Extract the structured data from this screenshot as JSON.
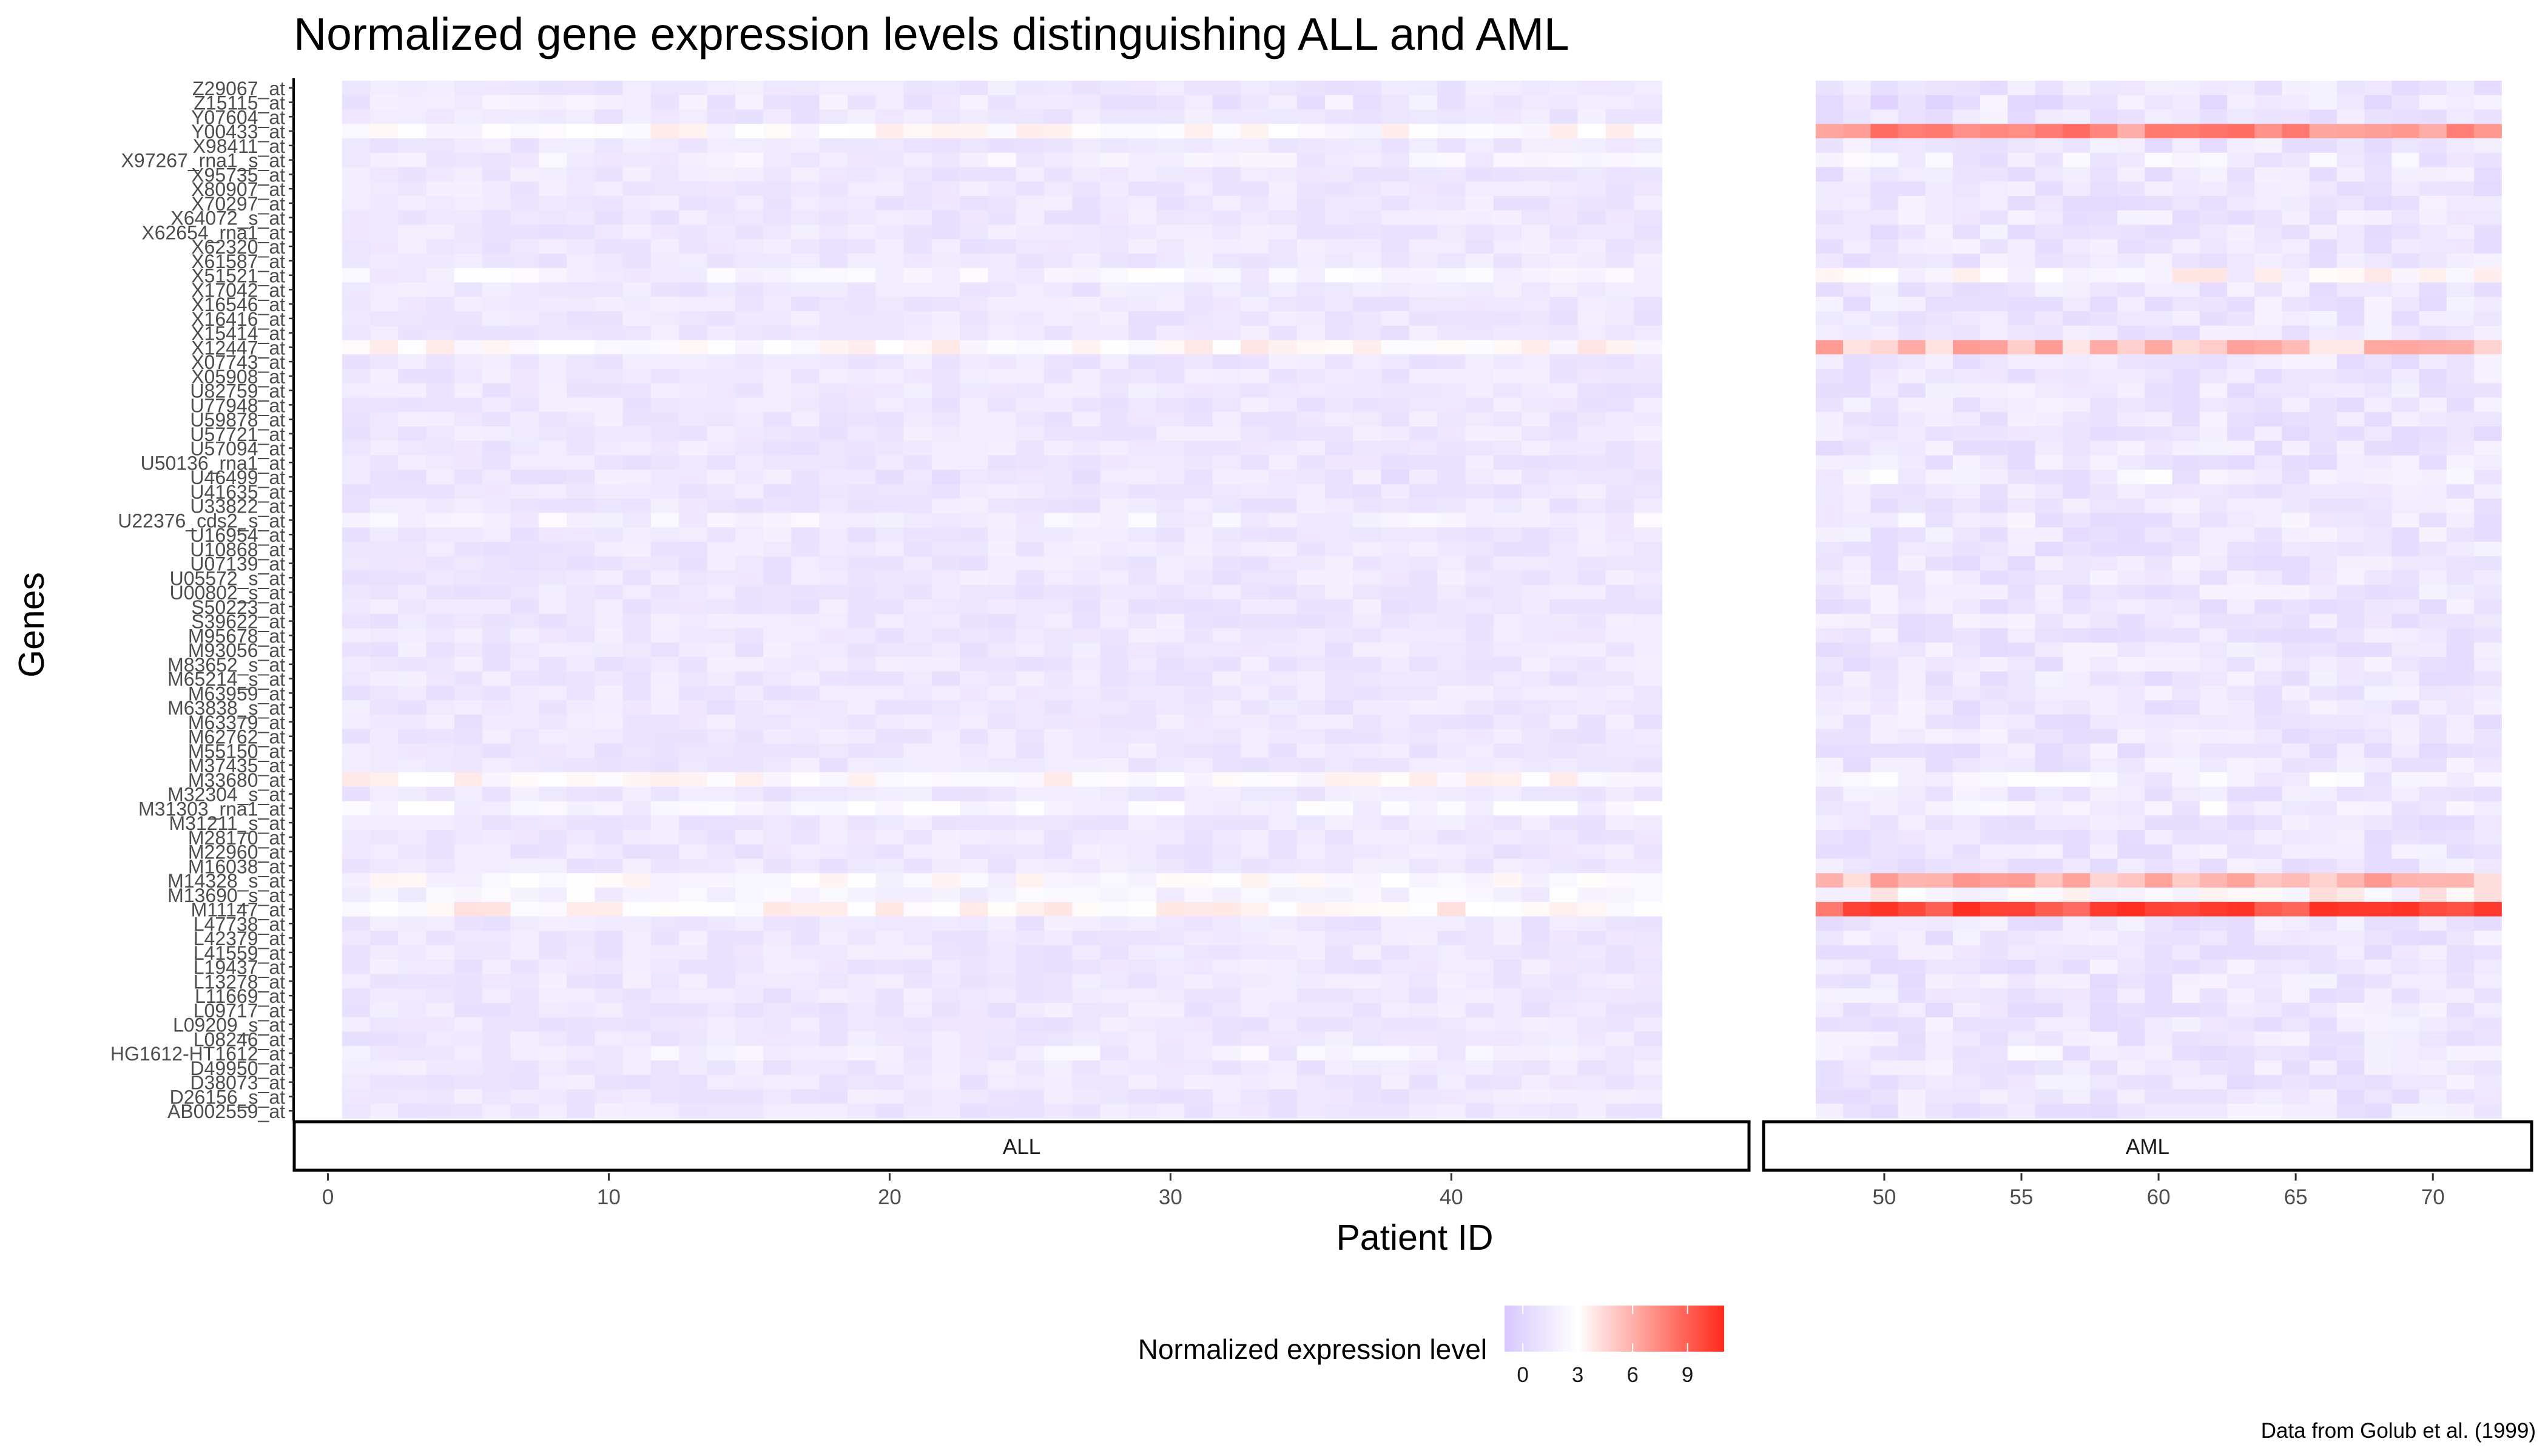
{
  "chart_data": {
    "type": "heatmap",
    "title": "Normalized gene expression levels distinguishing ALL and AML",
    "xlabel": "Patient ID",
    "ylabel": "Genes",
    "caption": "Data from Golub et al. (1999)",
    "facets": [
      {
        "name": "ALL",
        "x_ticks": [
          0,
          10,
          20,
          30,
          40
        ],
        "patients": [
          1,
          47
        ],
        "xlim": [
          -1.2,
          50.6
        ]
      },
      {
        "name": "AML",
        "x_ticks": [
          50,
          55,
          60,
          65,
          70
        ],
        "patients": [
          48,
          72
        ],
        "xlim": [
          45.6,
          73.6
        ]
      }
    ],
    "genes": [
      "Z29067_at",
      "Z15115_at",
      "Y07604_at",
      "Y00433_at",
      "X98411_at",
      "X97267_rna1_s_at",
      "X95735_at",
      "X80907_at",
      "X70297_at",
      "X64072_s_at",
      "X62654_rna1_at",
      "X62320_at",
      "X61587_at",
      "X51521_at",
      "X17042_at",
      "X16546_at",
      "X16416_at",
      "X15414_at",
      "X12447_at",
      "X07743_at",
      "X05908_at",
      "U82759_at",
      "U77948_at",
      "U59878_at",
      "U57721_at",
      "U57094_at",
      "U50136_rna1_at",
      "U46499_at",
      "U41635_at",
      "U33822_at",
      "U22376_cds2_s_at",
      "U16954_at",
      "U10868_at",
      "U07139_at",
      "U05572_s_at",
      "U00802_s_at",
      "S50223_at",
      "S39622_at",
      "M95678_at",
      "M93056_at",
      "M83652_s_at",
      "M65214_s_at",
      "M63959_at",
      "M63838_s_at",
      "M63379_at",
      "M62762_at",
      "M55150_at",
      "M37435_at",
      "M33680_at",
      "M32304_s_at",
      "M31303_rna1_at",
      "M31211_s_at",
      "M28170_at",
      "M22960_at",
      "M16038_at",
      "M14328_s_at",
      "M13690_s_at",
      "M11147_at",
      "L47738_at",
      "L42379_at",
      "L41559_at",
      "L19437_at",
      "L13278_at",
      "L11669_at",
      "L09717_at",
      "L09209_s_at",
      "L08246_at",
      "HG1612-HT1612_at",
      "D49950_at",
      "D38073_at",
      "D26156_s_at",
      "AB002559_at"
    ],
    "rows": [
      {
        "gene": "Y00433_at",
        "all_mean": 2.8,
        "aml_mean": 6.8
      },
      {
        "gene": "M11147_at",
        "all_mean": 3.2,
        "aml_mean": 8.6
      },
      {
        "gene": "M14328_s_at",
        "all_mean": 2.6,
        "aml_mean": 5.2
      },
      {
        "gene": "M13690_s_at",
        "all_mean": 2.2,
        "aml_mean": 2.9
      },
      {
        "gene": "X12447_at",
        "all_mean": 3.0,
        "aml_mean": 5.0
      },
      {
        "gene": "X51521_at",
        "all_mean": 2.1,
        "aml_mean": 2.6
      },
      {
        "gene": "M33680_at",
        "all_mean": 2.9,
        "aml_mean": 2.0
      },
      {
        "gene": "M31303_rna1_at",
        "all_mean": 2.2,
        "aml_mean": 1.8
      },
      {
        "gene": "X97267_rna1_s_at",
        "all_mean": 1.8,
        "aml_mean": 1.5
      },
      {
        "gene": "U22376_cds2_s_at",
        "all_mean": 2.0,
        "aml_mean": 1.4
      },
      {
        "gene": "HG1612-HT1612_at",
        "all_mean": 1.8,
        "aml_mean": 1.6
      },
      {
        "gene": "Z15115_at",
        "all_mean": 1.4,
        "aml_mean": 1.0
      },
      {
        "gene": "U46499_at",
        "all_mean": 1.1,
        "aml_mean": 1.6
      }
    ],
    "legend": {
      "title": "Normalized expression level",
      "ticks": [
        0,
        3,
        6,
        9
      ],
      "range": [
        -1,
        11
      ],
      "colors": [
        "#d7c8ff",
        "#ffffff",
        "#ff3333"
      ],
      "midpoint": 3
    },
    "grid": false
  },
  "colors": {
    "background": "#ffffff",
    "strip_border": "#000000",
    "text": "#4d4d4d"
  }
}
